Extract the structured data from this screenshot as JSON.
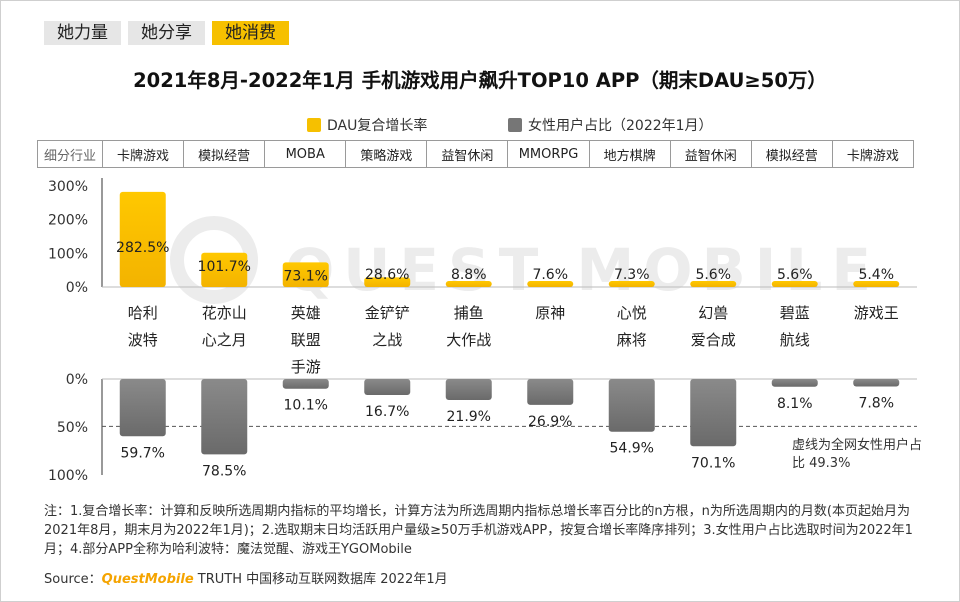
{
  "tabs": [
    {
      "label": "她力量",
      "active": false
    },
    {
      "label": "她分享",
      "active": false
    },
    {
      "label": "她消费",
      "active": true
    }
  ],
  "title": "2021年8月-2022年1月 手机游戏用户飙升TOP10 APP（期末DAU≥50万）",
  "legend": {
    "dau": "DAU复合增长率",
    "female": "女性用户占比（2022年1月）"
  },
  "category_header": "细分行业",
  "categories": [
    "卡牌游戏",
    "模拟经营",
    "MOBA",
    "策略游戏",
    "益智休闲",
    "MMORPG",
    "地方棋牌",
    "益智休闲",
    "模拟经营",
    "卡牌游戏"
  ],
  "watermark": "QUEST MOBILE",
  "dashed_note": "虚线为全网女性用户占比 49.3%",
  "footnote": "注：1.复合增长率：计算和反映所选周期内指标的平均增长，计算方法为所选周期内指标总增长率百分比的n方根，n为所选周期内的月数(本页起始月为2021年8月，期末月为2022年1月)；2.选取期末日均活跃用户量级≥50万手机游戏APP，按复合增长率降序排列；3.女性用户占比选取时间为2022年1月；4.部分APP全称为哈利波特：魔法觉醒、游戏王YGOMobile",
  "source": {
    "prefix": "Source：",
    "brand": "QuestMobile",
    "suffix": " TRUTH 中国移动互联网数据库 2022年1月"
  },
  "colors": {
    "dau": "#f6c000",
    "female": "#767676",
    "tab_active": "#f6c000",
    "tab": "#e6e6e6"
  },
  "chart_data": {
    "type": "bar",
    "title": "2021年8月-2022年1月 手机游戏用户飙升TOP10 APP（期末DAU≥50万）",
    "apps": [
      [
        "哈利",
        "波特"
      ],
      [
        "花亦山",
        "心之月"
      ],
      [
        "英雄",
        "联盟",
        "手游"
      ],
      [
        "金铲铲",
        "之战"
      ],
      [
        "捕鱼",
        "大作战"
      ],
      [
        "原神"
      ],
      [
        "心悦",
        "麻将"
      ],
      [
        "幻兽",
        "爱合成"
      ],
      [
        "碧蓝",
        "航线"
      ],
      [
        "游戏王"
      ]
    ],
    "series": [
      {
        "name": "DAU复合增长率",
        "values": [
          282.5,
          101.7,
          73.1,
          28.6,
          8.8,
          7.6,
          7.3,
          5.6,
          5.6,
          5.4
        ],
        "labels": [
          "282.5%",
          "101.7%",
          "73.1%",
          "28.6%",
          "8.8%",
          "7.6%",
          "7.3%",
          "5.6%",
          "5.6%",
          "5.4%"
        ],
        "ylim": [
          0,
          300
        ],
        "yticks": [
          "0%",
          "100%",
          "200%",
          "300%"
        ]
      },
      {
        "name": "女性用户占比（2022年1月）",
        "values": [
          59.7,
          78.5,
          10.1,
          16.7,
          21.9,
          26.9,
          54.9,
          70.1,
          8.1,
          7.8
        ],
        "labels": [
          "59.7%",
          "78.5%",
          "10.1%",
          "16.7%",
          "21.9%",
          "26.9%",
          "54.9%",
          "70.1%",
          "8.1%",
          "7.8%"
        ],
        "ylim": [
          0,
          100
        ],
        "yticks": [
          "0%",
          "50%",
          "100%"
        ],
        "reference_line": 49.3
      }
    ]
  }
}
